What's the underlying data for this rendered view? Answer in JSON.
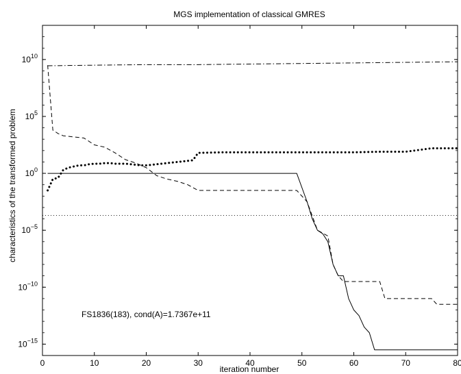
{
  "chart_data": {
    "type": "line",
    "title": "MGS implementation of classical GMRES",
    "xlabel": "iteration number",
    "ylabel": "characteristics of the transformed problem",
    "xlim": [
      0,
      80
    ],
    "ylim_log10": [
      -16,
      13
    ],
    "y_scale": "log",
    "grid": false,
    "x_ticks": [
      "0",
      "10",
      "20",
      "30",
      "40",
      "50",
      "60",
      "70",
      "80"
    ],
    "y_ticks": [
      {
        "exp": 10,
        "base": "10",
        "power": "10"
      },
      {
        "exp": 5,
        "base": "10",
        "power": "5"
      },
      {
        "exp": 0,
        "base": "10",
        "power": "0"
      },
      {
        "exp": -5,
        "base": "10",
        "power": "−5"
      },
      {
        "exp": -10,
        "base": "10",
        "power": "−10"
      },
      {
        "exp": -15,
        "base": "10",
        "power": "−15"
      }
    ],
    "annotation": "FS1836(183), cond(A)=1.7367e+11",
    "series": [
      {
        "style": "solid",
        "x": [
          1,
          49,
          51,
          52,
          53,
          54,
          55,
          56,
          57,
          58,
          59,
          60,
          61,
          62,
          63,
          64,
          80
        ],
        "log10_y": [
          0,
          0,
          -2.5,
          -4,
          -5,
          -5.3,
          -6,
          -8,
          -9,
          -9,
          -11,
          -12,
          -12.5,
          -13.5,
          -14,
          -15.5,
          -15.5
        ]
      },
      {
        "style": "dashed",
        "x": [
          1,
          2,
          3,
          4,
          6,
          8,
          10,
          12,
          14,
          16,
          18,
          20,
          22,
          24,
          26,
          28,
          30,
          35,
          40,
          45,
          49,
          51,
          53,
          55,
          56,
          57,
          58,
          60,
          62,
          65,
          66,
          67,
          73,
          75,
          76,
          80
        ],
        "log10_y": [
          9.5,
          3.8,
          3.5,
          3.3,
          3.2,
          3.1,
          2.5,
          2.3,
          1.8,
          1.2,
          0.9,
          0.5,
          -0.2,
          -0.5,
          -0.7,
          -1,
          -1.5,
          -1.5,
          -1.5,
          -1.5,
          -1.5,
          -2.5,
          -5,
          -5.5,
          -8,
          -9,
          -9.5,
          -9.5,
          -9.5,
          -9.5,
          -11,
          -11,
          -11,
          -11,
          -11.5,
          -11.5
        ]
      },
      {
        "style": "dotted",
        "x": [
          1,
          2,
          3,
          4,
          5,
          6,
          7,
          8,
          9,
          10,
          11,
          12,
          13,
          14,
          15,
          16,
          17,
          18,
          19,
          20,
          21,
          22,
          23,
          24,
          25,
          26,
          27,
          28,
          29,
          30,
          35,
          40,
          45,
          50,
          55,
          60,
          65,
          70,
          75,
          80
        ],
        "log10_y": [
          -1.5,
          -0.5,
          -0.4,
          0.3,
          0.5,
          0.6,
          0.7,
          0.7,
          0.8,
          0.85,
          0.85,
          0.9,
          0.9,
          0.85,
          0.85,
          0.85,
          0.8,
          0.75,
          0.7,
          0.7,
          0.75,
          0.8,
          0.85,
          0.9,
          0.95,
          1,
          1.05,
          1.1,
          1.15,
          1.8,
          1.85,
          1.85,
          1.85,
          1.85,
          1.85,
          1.85,
          1.9,
          1.9,
          2.2,
          2.2
        ]
      },
      {
        "style": "dotted-flat",
        "x": [
          0,
          80
        ],
        "log10_y": [
          -3.7,
          -3.7
        ]
      },
      {
        "style": "dashdot",
        "x": [
          1,
          10,
          20,
          30,
          40,
          50,
          60,
          70,
          80
        ],
        "log10_y": [
          9.45,
          9.5,
          9.55,
          9.55,
          9.6,
          9.65,
          9.7,
          9.75,
          9.8
        ]
      }
    ]
  }
}
